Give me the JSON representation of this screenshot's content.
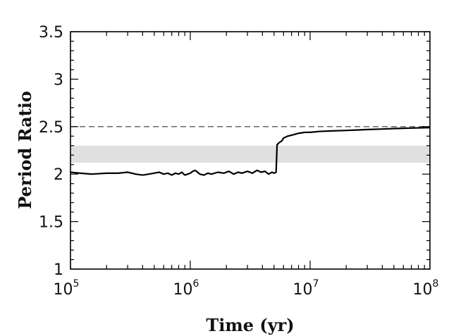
{
  "chart_data": {
    "type": "line",
    "title": "",
    "xlabel": "Time (yr)",
    "ylabel": "Period Ratio",
    "x_scale": "log",
    "xlim": [
      100000,
      100000000
    ],
    "ylim": [
      1,
      3.5
    ],
    "x_ticks": [
      {
        "value": 100000,
        "base": "10",
        "exp": "5"
      },
      {
        "value": 1000000,
        "base": "10",
        "exp": "6"
      },
      {
        "value": 10000000,
        "base": "10",
        "exp": "7"
      },
      {
        "value": 100000000,
        "base": "10",
        "exp": "8"
      }
    ],
    "y_ticks": [
      {
        "value": 1,
        "label": "1"
      },
      {
        "value": 1.5,
        "label": "1.5"
      },
      {
        "value": 2,
        "label": "2"
      },
      {
        "value": 2.5,
        "label": "2.5"
      },
      {
        "value": 3,
        "label": "3"
      },
      {
        "value": 3.5,
        "label": "3.5"
      }
    ],
    "grid": false,
    "shaded_band": {
      "y_min": 2.12,
      "y_max": 2.3,
      "color": "#e0e0e0"
    },
    "reference_line": {
      "y": 2.5,
      "style": "dashed",
      "color": "#666666"
    },
    "series": [
      {
        "color": "#000000",
        "points": [
          [
            100000,
            2.02
          ],
          [
            120000,
            2.01
          ],
          [
            150000,
            2.0
          ],
          [
            200000,
            2.01
          ],
          [
            250000,
            2.01
          ],
          [
            300000,
            2.02
          ],
          [
            350000,
            2.0
          ],
          [
            400000,
            1.99
          ],
          [
            450000,
            2.0
          ],
          [
            500000,
            2.01
          ],
          [
            550000,
            2.02
          ],
          [
            600000,
            2.0
          ],
          [
            650000,
            2.01
          ],
          [
            700000,
            1.99
          ],
          [
            750000,
            2.01
          ],
          [
            800000,
            2.0
          ],
          [
            850000,
            2.02
          ],
          [
            900000,
            1.99
          ],
          [
            950000,
            2.0
          ],
          [
            1000000,
            2.01
          ],
          [
            1050000,
            2.03
          ],
          [
            1100000,
            2.04
          ],
          [
            1150000,
            2.02
          ],
          [
            1200000,
            2.0
          ],
          [
            1300000,
            1.99
          ],
          [
            1400000,
            2.01
          ],
          [
            1500000,
            2.0
          ],
          [
            1700000,
            2.02
          ],
          [
            1900000,
            2.01
          ],
          [
            2100000,
            2.03
          ],
          [
            2300000,
            2.0
          ],
          [
            2500000,
            2.02
          ],
          [
            2700000,
            2.01
          ],
          [
            3000000,
            2.03
          ],
          [
            3300000,
            2.01
          ],
          [
            3600000,
            2.04
          ],
          [
            3900000,
            2.02
          ],
          [
            4200000,
            2.03
          ],
          [
            4500000,
            2.0
          ],
          [
            4800000,
            2.02
          ],
          [
            5000000,
            2.01
          ],
          [
            5200000,
            2.02
          ],
          [
            5300000,
            2.31
          ],
          [
            5500000,
            2.33
          ],
          [
            5800000,
            2.35
          ],
          [
            6000000,
            2.38
          ],
          [
            6500000,
            2.4
          ],
          [
            7000000,
            2.41
          ],
          [
            7500000,
            2.42
          ],
          [
            8000000,
            2.43
          ],
          [
            9000000,
            2.44
          ],
          [
            10000000,
            2.44
          ],
          [
            12000000,
            2.45
          ],
          [
            15000000,
            2.455
          ],
          [
            20000000,
            2.46
          ],
          [
            25000000,
            2.465
          ],
          [
            30000000,
            2.47
          ],
          [
            40000000,
            2.475
          ],
          [
            50000000,
            2.48
          ],
          [
            70000000,
            2.485
          ],
          [
            100000000,
            2.49
          ]
        ]
      }
    ]
  }
}
